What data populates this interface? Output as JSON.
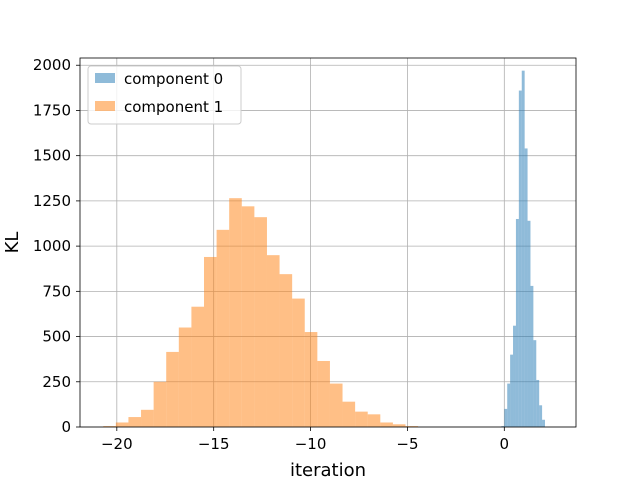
{
  "chart_data": {
    "type": "bar",
    "xlabel": "iteration",
    "ylabel": "KL",
    "xlim": [
      -21.9,
      3.7
    ],
    "ylim": [
      0,
      2040
    ],
    "xticks": [
      -20,
      -15,
      -10,
      -5,
      0
    ],
    "xtick_labels": [
      "−20",
      "−15",
      "−10",
      "−5",
      "0"
    ],
    "yticks": [
      0,
      250,
      500,
      750,
      1000,
      1250,
      1500,
      1750,
      2000
    ],
    "ytick_labels": [
      "0",
      "250",
      "500",
      "750",
      "1000",
      "1250",
      "1500",
      "1750",
      "2000"
    ],
    "grid": true,
    "legend_position": "top-left",
    "alpha": 0.5,
    "series": [
      {
        "name": "component 0",
        "color": "#1f77b4",
        "bin_edges": [
          -0.15,
          0.0,
          0.15,
          0.3,
          0.45,
          0.6,
          0.75,
          0.9,
          1.05,
          1.2,
          1.35,
          1.5,
          1.65,
          1.8,
          1.95,
          2.1
        ],
        "counts": [
          5,
          100,
          240,
          400,
          560,
          1150,
          1860,
          1970,
          1540,
          1140,
          780,
          480,
          260,
          120,
          40
        ]
      },
      {
        "name": "component 1",
        "color": "#ff7f0e",
        "bin_edges": [
          -20.7,
          -20.05,
          -19.4,
          -18.75,
          -18.1,
          -17.45,
          -16.8,
          -16.15,
          -15.5,
          -14.85,
          -14.2,
          -13.55,
          -12.9,
          -12.25,
          -11.6,
          -10.95,
          -10.3,
          -9.65,
          -9.0,
          -8.35,
          -7.7,
          -7.05,
          -6.4,
          -5.75,
          -5.1,
          -4.45
        ],
        "counts": [
          5,
          25,
          55,
          95,
          250,
          415,
          550,
          665,
          940,
          1090,
          1265,
          1220,
          1160,
          950,
          845,
          710,
          525,
          365,
          240,
          140,
          85,
          70,
          25,
          15,
          5
        ]
      }
    ]
  }
}
